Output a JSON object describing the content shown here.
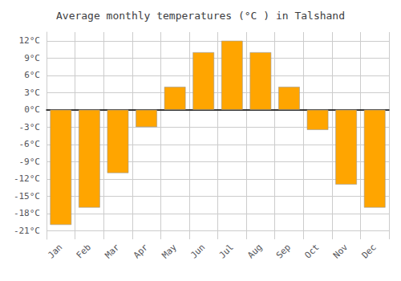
{
  "chart_data": {
    "type": "bar",
    "title": "Average monthly temperatures (°C ) in Talshand",
    "categories": [
      "Jan",
      "Feb",
      "Mar",
      "Apr",
      "May",
      "Jun",
      "Jul",
      "Aug",
      "Sep",
      "Oct",
      "Nov",
      "Dec"
    ],
    "values": [
      -20,
      -17,
      -11,
      -3,
      4,
      10,
      12,
      10,
      4,
      -3.5,
      -13,
      -17
    ],
    "color": "#FFA500",
    "ylim": [
      -22.5,
      13.5
    ],
    "yticks": [
      {
        "value": -21,
        "label": "-21°C"
      },
      {
        "value": -18,
        "label": "-18°C"
      },
      {
        "value": -15,
        "label": "-15°C"
      },
      {
        "value": -12,
        "label": "-12°C"
      },
      {
        "value": -9,
        "label": "-9°C"
      },
      {
        "value": -6,
        "label": "-6°C"
      },
      {
        "value": -3,
        "label": "-3°C"
      },
      {
        "value": 0,
        "label": "0°C"
      },
      {
        "value": 3,
        "label": "3°C"
      },
      {
        "value": 6,
        "label": "6°C"
      },
      {
        "value": 9,
        "label": "9°C"
      },
      {
        "value": 12,
        "label": "12°C"
      }
    ],
    "grid": true
  }
}
